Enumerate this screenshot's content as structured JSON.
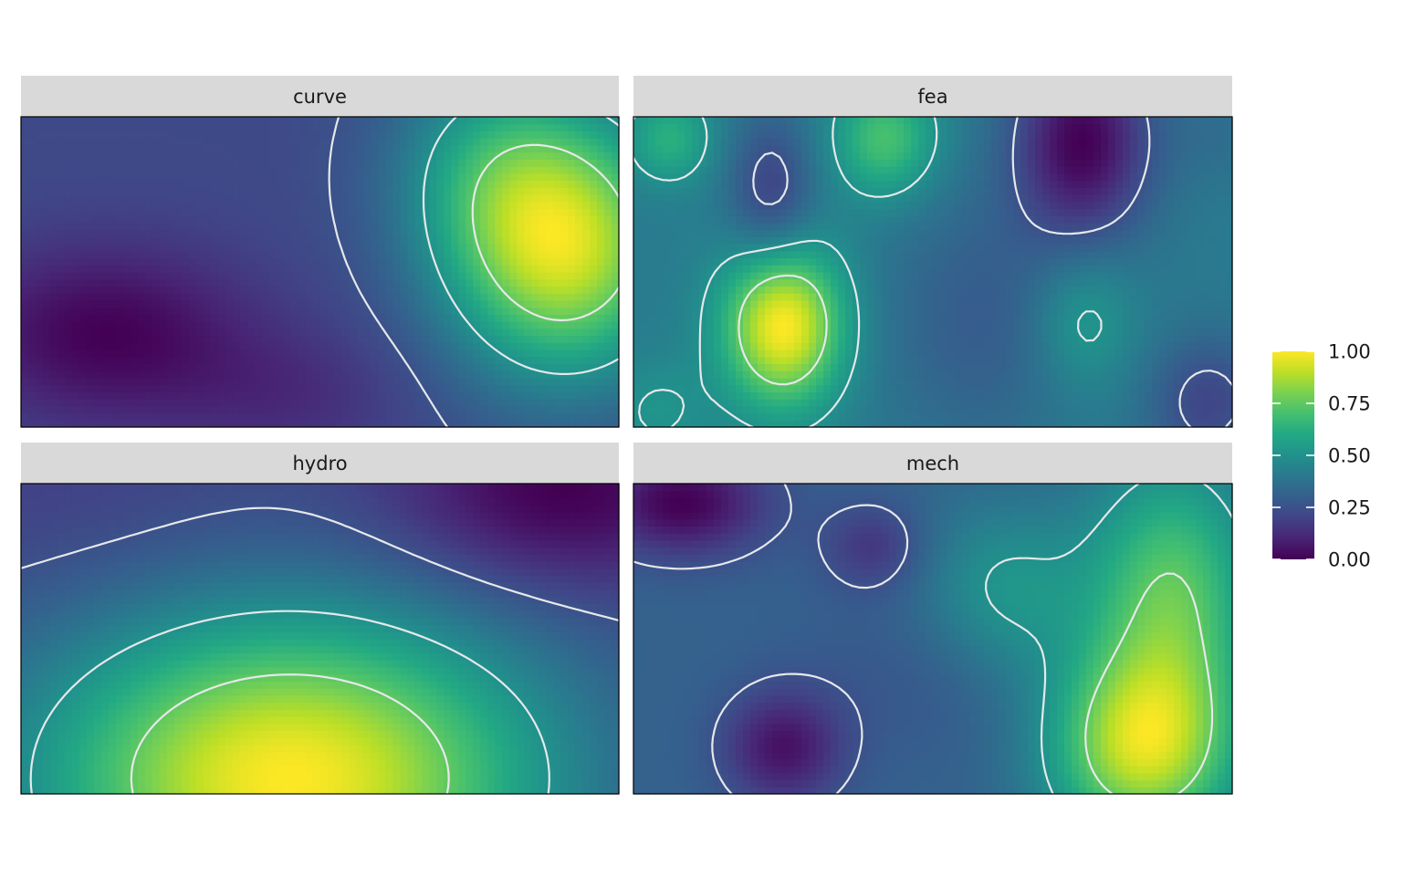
{
  "chart_data": {
    "type": "heatmap",
    "layout": "facet_wrap 2x2",
    "value_range": [
      0,
      1
    ],
    "colormap": "viridis",
    "contours": true,
    "grid": false,
    "legend": {
      "position": "right",
      "ticks": [
        0.0,
        0.25,
        0.5,
        0.75,
        1.0
      ],
      "tick_labels": [
        "0.00",
        "0.25",
        "0.50",
        "0.75",
        "1.00"
      ]
    },
    "facets": [
      {
        "label": "curve",
        "bumps": [
          {
            "x": 0.91,
            "y": 0.58,
            "sx": 0.14,
            "sy": 0.3,
            "a": 0.8
          },
          {
            "x": 0.78,
            "y": 0.85,
            "sx": 0.12,
            "sy": 0.25,
            "a": 0.25
          },
          {
            "x": 0.14,
            "y": 0.3,
            "sx": 0.17,
            "sy": 0.2,
            "a": -0.25
          },
          {
            "x": 0.45,
            "y": 0.1,
            "sx": 0.14,
            "sy": 0.16,
            "a": -0.1
          }
        ]
      },
      {
        "label": "fea",
        "bumps": [
          {
            "x": 0.25,
            "y": 0.33,
            "sx": 0.07,
            "sy": 0.18,
            "a": 0.6
          },
          {
            "x": 0.42,
            "y": 0.93,
            "sx": 0.06,
            "sy": 0.13,
            "a": 0.3
          },
          {
            "x": 0.06,
            "y": 0.93,
            "sx": 0.05,
            "sy": 0.1,
            "a": 0.22
          },
          {
            "x": 0.75,
            "y": 0.92,
            "sx": 0.08,
            "sy": 0.22,
            "a": -0.4
          },
          {
            "x": 0.23,
            "y": 0.75,
            "sx": 0.05,
            "sy": 0.18,
            "a": -0.22
          },
          {
            "x": 0.75,
            "y": 0.35,
            "sx": 0.06,
            "sy": 0.16,
            "a": 0.15
          },
          {
            "x": 0.96,
            "y": 0.08,
            "sx": 0.07,
            "sy": 0.15,
            "a": -0.2
          },
          {
            "x": 0.04,
            "y": 0.05,
            "sx": 0.06,
            "sy": 0.12,
            "a": 0.1
          },
          {
            "x": 0.58,
            "y": 0.35,
            "sx": 0.12,
            "sy": 0.3,
            "a": -0.12
          },
          {
            "x": 0.98,
            "y": 0.95,
            "sx": 0.06,
            "sy": 0.12,
            "a": -0.05
          }
        ]
      },
      {
        "label": "hydro",
        "bumps": [
          {
            "x": 0.45,
            "y": 0.05,
            "sx": 0.3,
            "sy": 0.38,
            "a": 0.8
          },
          {
            "x": 0.9,
            "y": 0.97,
            "sx": 0.2,
            "sy": 0.22,
            "a": -0.25
          },
          {
            "x": 0.1,
            "y": 0.95,
            "sx": 0.25,
            "sy": 0.25,
            "a": -0.05
          }
        ]
      },
      {
        "label": "mech",
        "bumps": [
          {
            "x": 0.85,
            "y": 0.15,
            "sx": 0.11,
            "sy": 0.22,
            "a": 0.55
          },
          {
            "x": 0.9,
            "y": 0.65,
            "sx": 0.1,
            "sy": 0.3,
            "a": 0.4
          },
          {
            "x": 0.62,
            "y": 0.65,
            "sx": 0.1,
            "sy": 0.2,
            "a": 0.2
          },
          {
            "x": 0.08,
            "y": 0.94,
            "sx": 0.1,
            "sy": 0.12,
            "a": -0.3
          },
          {
            "x": 0.25,
            "y": 0.15,
            "sx": 0.07,
            "sy": 0.13,
            "a": -0.25
          },
          {
            "x": 0.4,
            "y": 0.8,
            "sx": 0.06,
            "sy": 0.1,
            "a": -0.15
          },
          {
            "x": 0.5,
            "y": 0.4,
            "sx": 0.15,
            "sy": 0.2,
            "a": -0.05
          }
        ]
      }
    ]
  },
  "colors": {
    "strip_background": "#d9d9d9",
    "panel_border": "#000000",
    "contour": "#e6e8ea",
    "text": "#1a1a1a"
  }
}
